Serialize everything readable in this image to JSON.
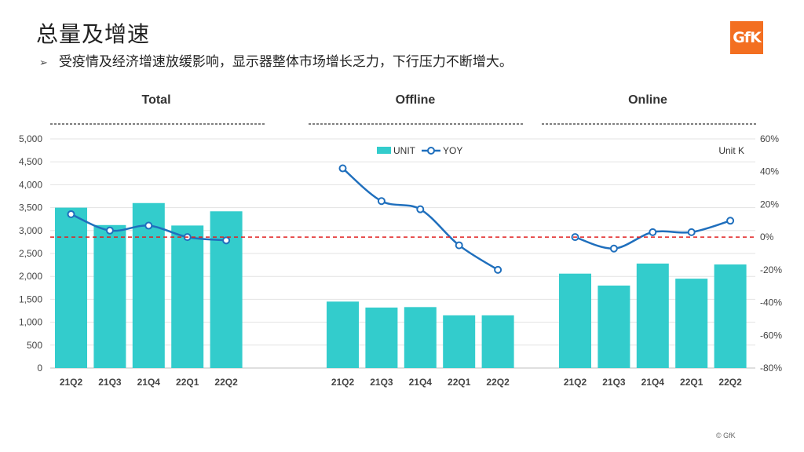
{
  "page": {
    "title": "总量及增速",
    "subtitle": "受疫情及经济增速放缓影响，显示器整体市场增长乏力，下行压力不断增大。",
    "bullet": "➢",
    "logo_text": "GfK",
    "copyright": "© GfK"
  },
  "chart_data": {
    "type": "bar",
    "unit_note": "Unit K",
    "legend": {
      "placement": "top-center",
      "bar_label": "UNIT",
      "line_label": "YOY"
    },
    "y_left": {
      "ticks": [
        "0",
        "500",
        "1,000",
        "1,500",
        "2,000",
        "2,500",
        "3,000",
        "3,500",
        "4,000",
        "4,500",
        "5,000"
      ],
      "ylim": [
        0,
        5000
      ]
    },
    "y_right": {
      "ticks": [
        "-80%",
        "-60%",
        "-40%",
        "-20%",
        "0%",
        "20%",
        "40%",
        "60%"
      ],
      "ylim": [
        -80,
        60
      ]
    },
    "colors": {
      "bar": "#33cccc",
      "line": "#1f6fbd",
      "zero_line": "#e02020",
      "separator": "#333333"
    },
    "segments": [
      {
        "name": "Total",
        "categories": [
          "21Q2",
          "21Q3",
          "21Q4",
          "22Q1",
          "22Q2"
        ],
        "unit": [
          3500,
          3120,
          3600,
          3110,
          3420
        ],
        "yoy": [
          14,
          4,
          7,
          0,
          -2
        ]
      },
      {
        "name": "Offline",
        "categories": [
          "21Q2",
          "21Q3",
          "21Q4",
          "22Q1",
          "22Q2"
        ],
        "unit": [
          1450,
          1320,
          1330,
          1150,
          1150
        ],
        "yoy": [
          42,
          22,
          17,
          -5,
          -20
        ]
      },
      {
        "name": "Online",
        "categories": [
          "21Q2",
          "21Q3",
          "21Q4",
          "22Q1",
          "22Q2"
        ],
        "unit": [
          2060,
          1800,
          2280,
          1950,
          2260
        ],
        "yoy": [
          0,
          -7,
          3,
          3,
          10
        ]
      }
    ]
  }
}
